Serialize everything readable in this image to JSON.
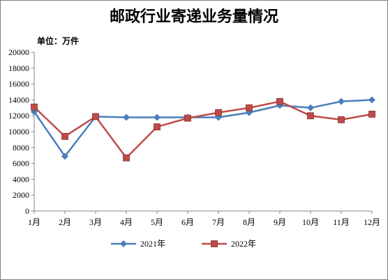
{
  "chart_data": {
    "type": "line",
    "title": "邮政行业寄递业务量情况",
    "unit_label": "单位：万件",
    "categories": [
      "1月",
      "2月",
      "3月",
      "4月",
      "5月",
      "6月",
      "7月",
      "8月",
      "9月",
      "10月",
      "11月",
      "12月"
    ],
    "ylim": [
      0,
      20000
    ],
    "yticks": [
      "0",
      "2000",
      "4000",
      "6000",
      "8000",
      "10000",
      "12000",
      "14000",
      "16000",
      "18000",
      "20000"
    ],
    "grid": false,
    "legend_position": "bottom",
    "series": [
      {
        "name": "2021年",
        "color": "#4a7ebb",
        "marker": "diamond",
        "values": [
          12500,
          6900,
          11900,
          11800,
          11800,
          11800,
          11800,
          12400,
          13300,
          13000,
          13800,
          14000
        ]
      },
      {
        "name": "2022年",
        "color": "#be4b48",
        "marker": "square",
        "values": [
          13100,
          9400,
          11900,
          6700,
          10600,
          11700,
          12400,
          13000,
          13800,
          12000,
          11500,
          12200
        ]
      }
    ]
  }
}
